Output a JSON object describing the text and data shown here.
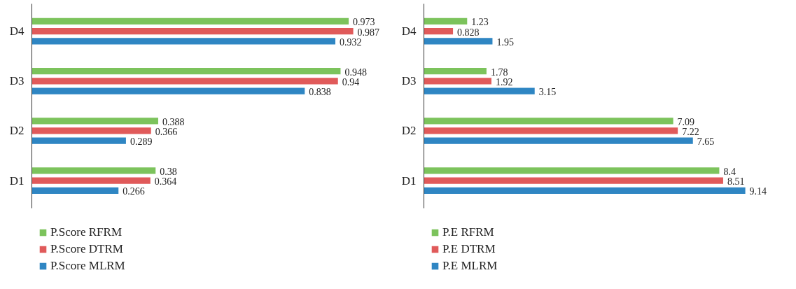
{
  "chart_data": [
    {
      "type": "bar",
      "orientation": "horizontal",
      "categories": [
        "D4",
        "D3",
        "D2",
        "D1"
      ],
      "data_labels": true,
      "legend": "bottom",
      "series": [
        {
          "name": "P.Score RFRM",
          "color": "#7cc35c",
          "values": [
            0.973,
            0.948,
            0.388,
            0.38
          ]
        },
        {
          "name": "P.Score DTRM",
          "color": "#e05a5a",
          "values": [
            0.987,
            0.94,
            0.366,
            0.364
          ]
        },
        {
          "name": "P.Score MLRM",
          "color": "#2f86c3",
          "values": [
            0.932,
            0.838,
            0.289,
            0.266
          ]
        }
      ]
    },
    {
      "type": "bar",
      "orientation": "horizontal",
      "categories": [
        "D4",
        "D3",
        "D2",
        "D1"
      ],
      "data_labels": true,
      "legend": "bottom",
      "series": [
        {
          "name": "P.E RFRM",
          "color": "#7cc35c",
          "values": [
            1.23,
            1.78,
            7.09,
            8.4
          ]
        },
        {
          "name": "P.E DTRM",
          "color": "#e05a5a",
          "values": [
            0.828,
            1.92,
            7.22,
            8.51
          ]
        },
        {
          "name": "P.E MLRM",
          "color": "#2f86c3",
          "values": [
            1.95,
            3.15,
            7.65,
            9.14
          ]
        }
      ]
    }
  ]
}
